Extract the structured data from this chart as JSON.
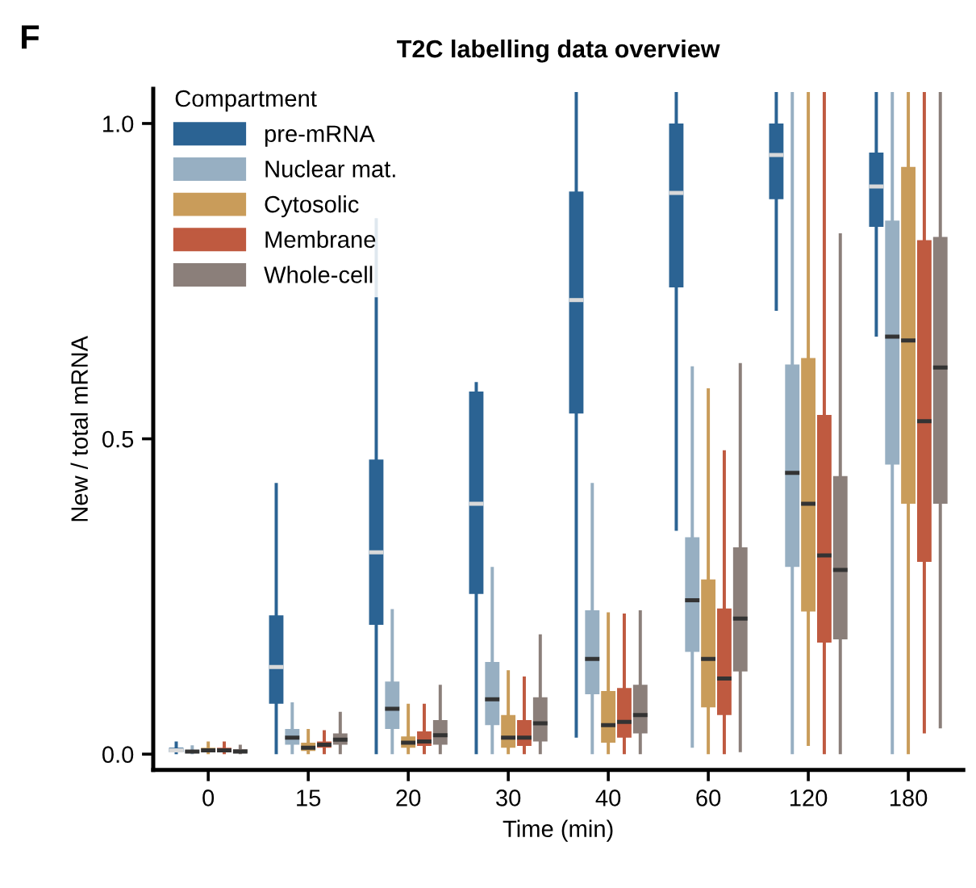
{
  "chart_data": {
    "type": "box",
    "title": "T2C labelling data overview",
    "xlabel": "Time (min)",
    "ylabel": "New / total mRNA",
    "legend_title": "Compartment",
    "legend": "top left",
    "grid": false,
    "annotations": [
      "F"
    ],
    "categories": [
      "0",
      "15",
      "20",
      "30",
      "40",
      "60",
      "120",
      "180"
    ],
    "ylim": [
      -0.025,
      1.055
    ],
    "yticks": [
      {
        "value": 0,
        "label": "0.0"
      },
      0.5,
      {
        "value": 1,
        "label": "1.0"
      }
    ],
    "series": [
      {
        "name": "pre-mRNA",
        "color": "#2b6393",
        "boxes": [
          {
            "low": 0,
            "q1": 0.003,
            "median": 0.006,
            "q3": 0.01,
            "high": 0.02
          },
          {
            "low": 0,
            "q1": 0.08,
            "median": 0.138,
            "q3": 0.22,
            "high": 0.43
          },
          {
            "low": 0,
            "q1": 0.205,
            "median": 0.32,
            "q3": 0.467,
            "high": 0.85
          },
          {
            "low": 0,
            "q1": 0.254,
            "median": 0.397,
            "q3": 0.575,
            "high": 0.59
          },
          {
            "low": 0.026,
            "q1": 0.54,
            "median": 0.72,
            "q3": 0.892,
            "high": 1.05
          },
          {
            "low": 0.354,
            "q1": 0.74,
            "median": 0.89,
            "q3": 1.0,
            "high": 1.05
          },
          {
            "low": 0.703,
            "q1": 0.88,
            "median": 0.95,
            "q3": 1.0,
            "high": 1.05
          },
          {
            "low": 0.662,
            "q1": 0.836,
            "median": 0.9,
            "q3": 0.954,
            "high": 1.05
          }
        ]
      },
      {
        "name": "Nuclear mat.",
        "color": "#97afc2",
        "boxes": [
          {
            "low": 0,
            "q1": 0.002,
            "median": 0.004,
            "q3": 0.006,
            "high": 0.014
          },
          {
            "low": 0,
            "q1": 0.015,
            "median": 0.026,
            "q3": 0.04,
            "high": 0.082
          },
          {
            "low": 0,
            "q1": 0.04,
            "median": 0.072,
            "q3": 0.115,
            "high": 0.23
          },
          {
            "low": 0,
            "q1": 0.046,
            "median": 0.087,
            "q3": 0.146,
            "high": 0.297
          },
          {
            "low": 0,
            "q1": 0.095,
            "median": 0.151,
            "q3": 0.228,
            "high": 0.43
          },
          {
            "low": 0.01,
            "q1": 0.162,
            "median": 0.244,
            "q3": 0.344,
            "high": 0.615
          },
          {
            "low": 0,
            "q1": 0.297,
            "median": 0.446,
            "q3": 0.618,
            "high": 1.05
          },
          {
            "low": 0,
            "q1": 0.459,
            "median": 0.662,
            "q3": 0.846,
            "high": 1.05
          }
        ]
      },
      {
        "name": "Cytosolic",
        "color": "#c99c5a",
        "boxes": [
          {
            "low": 0,
            "q1": 0.003,
            "median": 0.006,
            "q3": 0.01,
            "high": 0.02
          },
          {
            "low": 0,
            "q1": 0.005,
            "median": 0.01,
            "q3": 0.018,
            "high": 0.04
          },
          {
            "low": 0,
            "q1": 0.01,
            "median": 0.018,
            "q3": 0.028,
            "high": 0.08
          },
          {
            "low": 0,
            "q1": 0.01,
            "median": 0.026,
            "q3": 0.062,
            "high": 0.133
          },
          {
            "low": 0,
            "q1": 0.018,
            "median": 0.046,
            "q3": 0.1,
            "high": 0.225
          },
          {
            "low": 0,
            "q1": 0.074,
            "median": 0.151,
            "q3": 0.277,
            "high": 0.58
          },
          {
            "low": 0.013,
            "q1": 0.226,
            "median": 0.397,
            "q3": 0.628,
            "high": 1.05
          },
          {
            "low": 0,
            "q1": 0.397,
            "median": 0.656,
            "q3": 0.931,
            "high": 1.05
          }
        ]
      },
      {
        "name": "Membrane",
        "color": "#bf5a40",
        "boxes": [
          {
            "low": 0,
            "q1": 0.003,
            "median": 0.006,
            "q3": 0.01,
            "high": 0.02
          },
          {
            "low": 0,
            "q1": 0.01,
            "median": 0.015,
            "q3": 0.02,
            "high": 0.038
          },
          {
            "low": 0,
            "q1": 0.013,
            "median": 0.02,
            "q3": 0.036,
            "high": 0.08
          },
          {
            "low": 0,
            "q1": 0.013,
            "median": 0.026,
            "q3": 0.054,
            "high": 0.123
          },
          {
            "low": 0,
            "q1": 0.026,
            "median": 0.051,
            "q3": 0.105,
            "high": 0.223
          },
          {
            "low": 0,
            "q1": 0.062,
            "median": 0.12,
            "q3": 0.231,
            "high": 0.482
          },
          {
            "low": 0,
            "q1": 0.177,
            "median": 0.315,
            "q3": 0.538,
            "high": 1.05
          },
          {
            "low": 0.033,
            "q1": 0.305,
            "median": 0.528,
            "q3": 0.815,
            "high": 1.05
          }
        ]
      },
      {
        "name": "Whole-cell",
        "color": "#8b7f7a",
        "boxes": [
          {
            "low": 0,
            "q1": 0.002,
            "median": 0.004,
            "q3": 0.008,
            "high": 0.015
          },
          {
            "low": 0,
            "q1": 0.015,
            "median": 0.023,
            "q3": 0.033,
            "high": 0.067
          },
          {
            "low": 0,
            "q1": 0.015,
            "median": 0.03,
            "q3": 0.054,
            "high": 0.11
          },
          {
            "low": 0,
            "q1": 0.02,
            "median": 0.049,
            "q3": 0.09,
            "high": 0.19
          },
          {
            "low": 0,
            "q1": 0.033,
            "median": 0.062,
            "q3": 0.11,
            "high": 0.228
          },
          {
            "low": 0.003,
            "q1": 0.131,
            "median": 0.215,
            "q3": 0.328,
            "high": 0.62
          },
          {
            "low": 0,
            "q1": 0.182,
            "median": 0.292,
            "q3": 0.441,
            "high": 0.826
          },
          {
            "low": 0.041,
            "q1": 0.397,
            "median": 0.613,
            "q3": 0.82,
            "high": 1.05
          }
        ]
      }
    ]
  }
}
